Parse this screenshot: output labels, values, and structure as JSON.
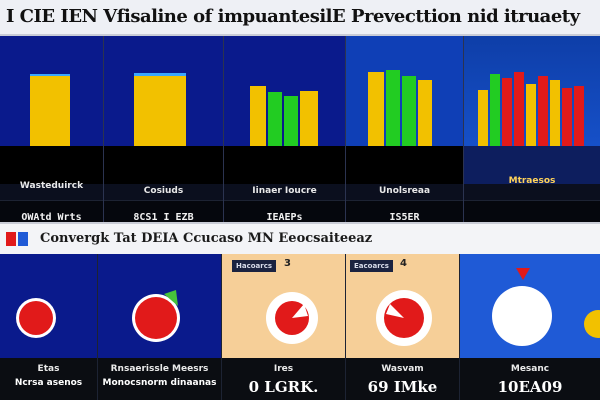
{
  "header": {
    "title": "I CIE IEN Vfisaline of impuantesilE Prevecttion nid itruaety"
  },
  "colors": {
    "navy": "#0a1a8c",
    "yellow": "#f2c100",
    "green": "#22cc22",
    "red": "#e11a1a",
    "peach": "#f6cf98",
    "blue": "#1f5ad6"
  },
  "panels": [
    {
      "label": "Wasteduirck",
      "value": "OWAtd Wrts"
    },
    {
      "label": "Cosiuds",
      "value": "8CS1 I EZB"
    },
    {
      "label": "Iinaer Ioucre",
      "value": "IEAEPs"
    },
    {
      "label": "Unolsreaa",
      "value": "IS5ER"
    },
    {
      "label": "Mtraesos",
      "value": ""
    }
  ],
  "section2": {
    "title": "Convergk Tat DEIA Ccucaso MN Eeocsaiteeaz"
  },
  "pies": [
    {
      "tag": "",
      "num": "",
      "label": "Etas",
      "value": "Ncrsa asenos",
      "value_small": true
    },
    {
      "tag": "",
      "num": "",
      "label": "Rnsaerissle Meesrs",
      "value": "Monocsnorm dinaanas",
      "value_small": true
    },
    {
      "tag": "Hacoarcs",
      "num": "3",
      "label": "Ires",
      "value": "0 LGRK."
    },
    {
      "tag": "Eacoarcs",
      "num": "4",
      "label": "Wasvam",
      "value": "69 IMke"
    },
    {
      "tag": "",
      "num": "",
      "label": "Mesanc",
      "value": "10EA09"
    }
  ]
}
